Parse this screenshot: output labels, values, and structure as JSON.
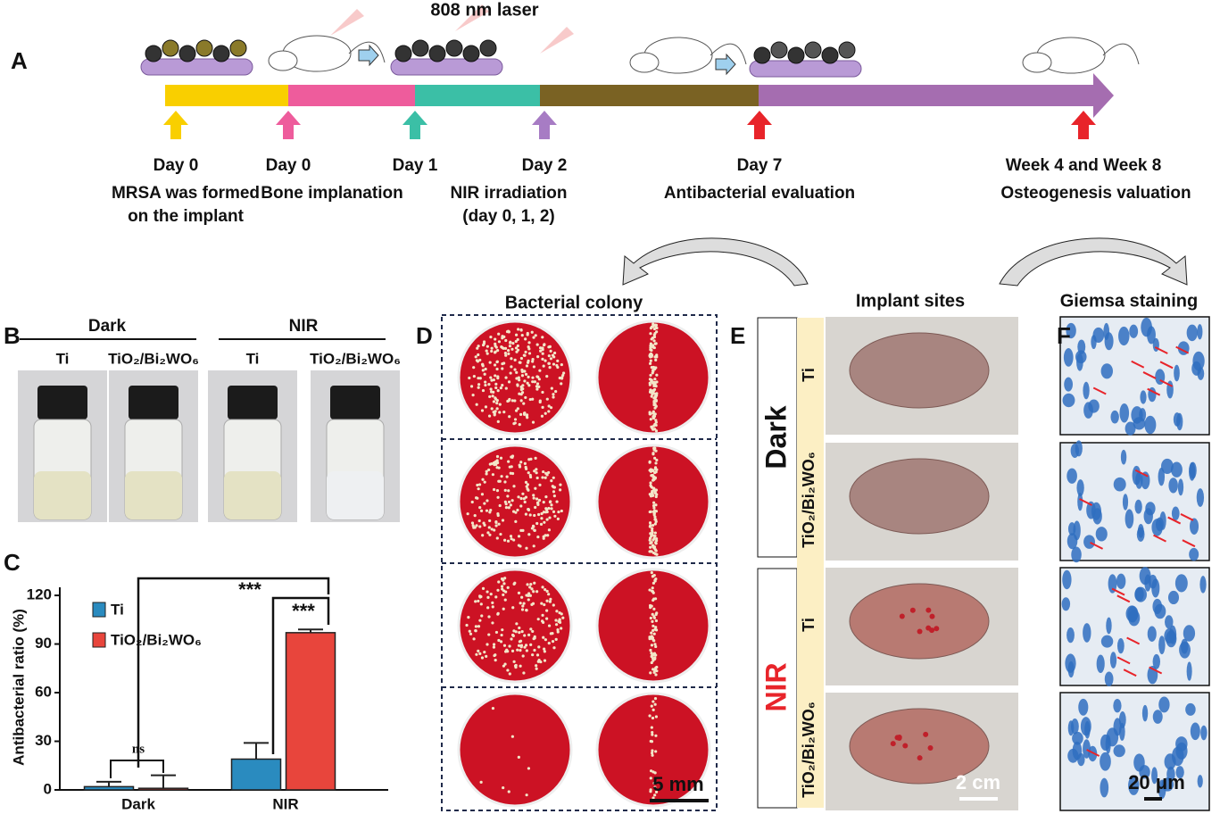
{
  "panel_labels": [
    "A",
    "B",
    "C",
    "D",
    "E",
    "F"
  ],
  "panel_a": {
    "laser_label": "808 nm laser",
    "events": [
      {
        "day": "Day 0",
        "description": [
          "MRSA was formed",
          "on the implant"
        ]
      },
      {
        "day": "Day 0",
        "description": [
          "Bone implanation"
        ]
      },
      {
        "day": "Day 1",
        "description": [
          "NIR irradiation",
          "(day 0, 1, 2)"
        ]
      },
      {
        "day": "Day 2"
      },
      {
        "day": "Day 7",
        "description": [
          "Antibacterial evaluation"
        ]
      },
      {
        "day": "Week 4 and Week 8",
        "description": [
          "Osteogenesis  valuation"
        ]
      }
    ]
  },
  "panel_b": {
    "groups": [
      {
        "name": "Dark",
        "samples": [
          "Ti",
          "TiO₂/Bi₂WO₆"
        ]
      },
      {
        "name": "NIR",
        "samples": [
          "Ti",
          "TiO₂/Bi₂WO₆"
        ]
      }
    ]
  },
  "chart_data": {
    "type": "bar",
    "y_label": "Antibacterial ratio (%)",
    "categories": [
      "Dark",
      "NIR"
    ],
    "series": [
      {
        "name": "Ti",
        "color": "#2a8bbf",
        "values": [
          2,
          19
        ],
        "errors": [
          3,
          10
        ]
      },
      {
        "name": "TiO₂/Bi₂WO₆",
        "color": "#e8453c",
        "values": [
          1,
          97
        ],
        "errors": [
          8,
          2
        ]
      }
    ],
    "ylim": [
      0,
      125
    ],
    "yticks": [
      0,
      30,
      60,
      90,
      120
    ],
    "annotations": [
      "***",
      "***",
      "ns"
    ]
  },
  "panel_d": {
    "title": "Bacterial colony",
    "scale_bar": "5 mm"
  },
  "panel_e": {
    "title": "Implant sites",
    "conditions": [
      "Dark",
      "NIR"
    ],
    "samples": [
      "Ti",
      "TiO₂/Bi₂WO₆"
    ],
    "scale_bar": "2 cm"
  },
  "panel_f": {
    "title": "Giemsa staining",
    "scale_bar": "20 μm"
  }
}
